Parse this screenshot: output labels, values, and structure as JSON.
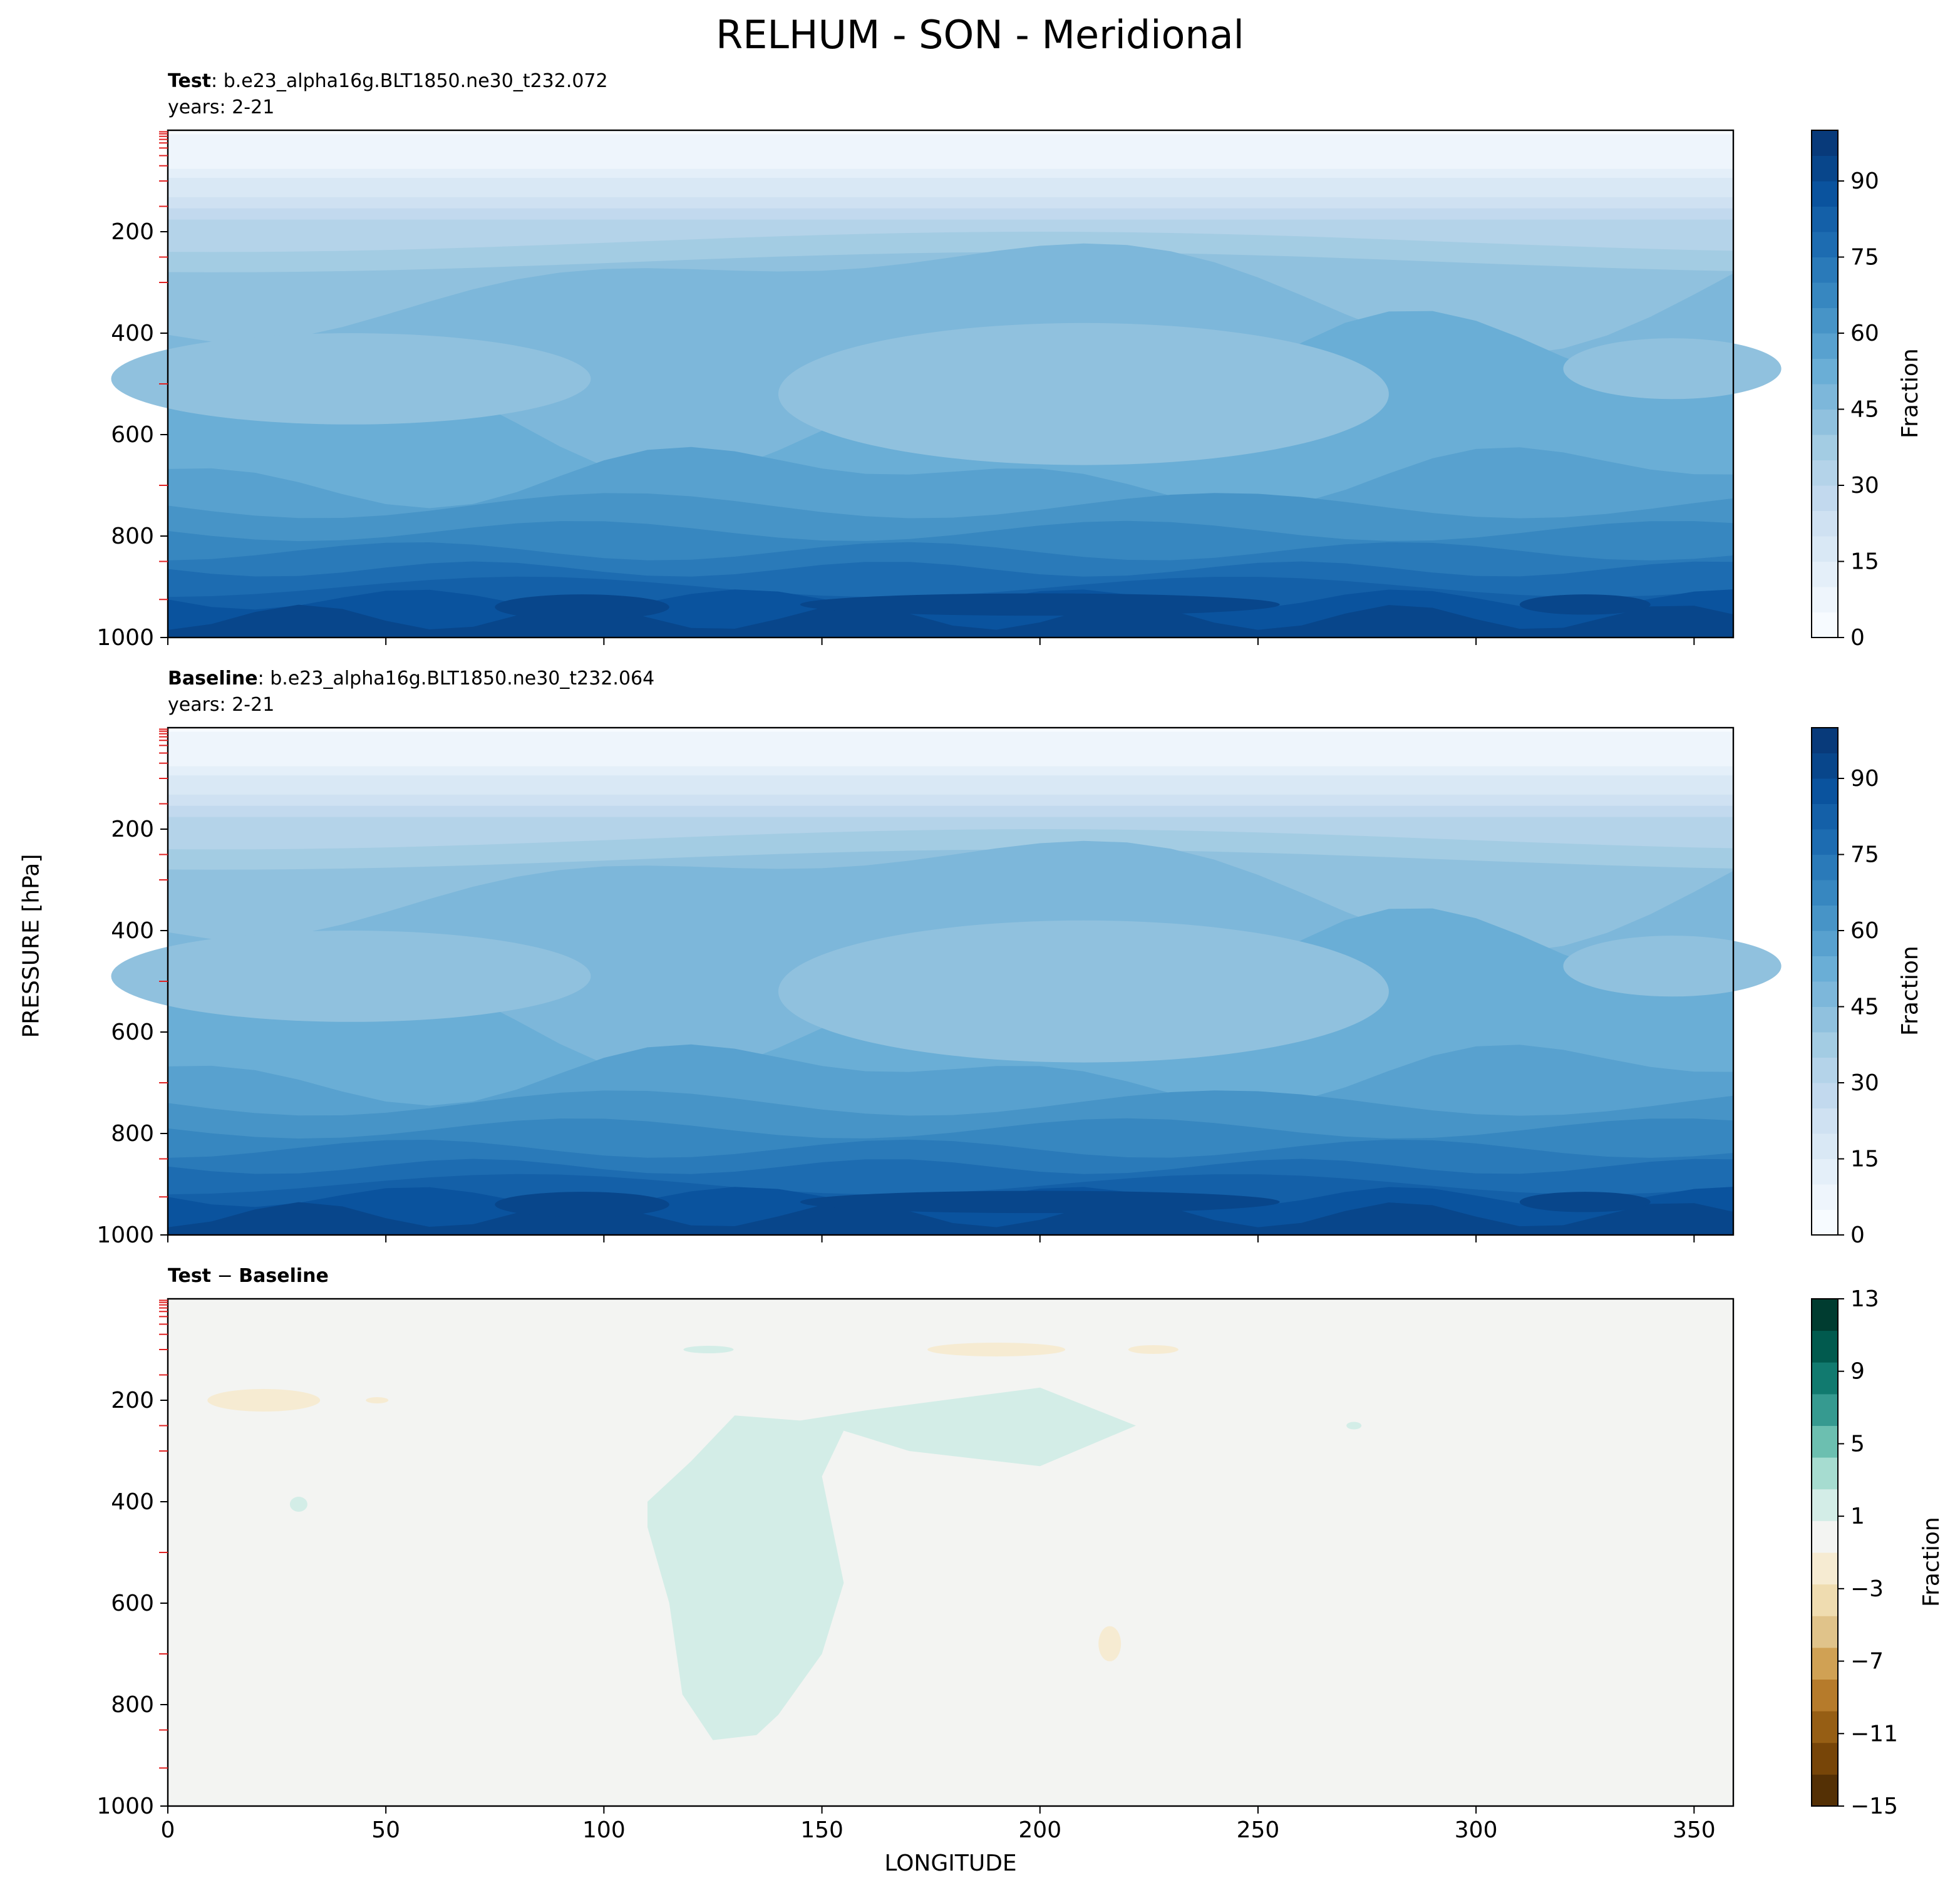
{
  "chart_data": {
    "title": "RELHUM - SON - Meridional",
    "xlabel": "LONGITUDE",
    "ylabel": "PRESSURE [hPa]",
    "type": "heatmap",
    "panels": [
      {
        "key": "test",
        "case_bold": "Test",
        "case_sep": ":",
        "case_name": "b.e23_alpha16g.BLT1850.ne30_t232.072",
        "years": "years: 2-21",
        "xlim": [
          0,
          359
        ],
        "ylim": [
          1000,
          0
        ],
        "yticks": [
          "200",
          "400",
          "600",
          "800",
          "1000"
        ],
        "xticks": [
          "0",
          "50",
          "100",
          "150",
          "200",
          "250",
          "300",
          "350"
        ],
        "show_xticklabels": false,
        "colormap": "Blues",
        "colorbar_label": "Fraction",
        "colorbar_ticks": [
          "0",
          "15",
          "30",
          "45",
          "60",
          "75",
          "90"
        ],
        "colorbar_range": [
          0,
          100
        ]
      },
      {
        "key": "baseline",
        "case_bold": "Baseline",
        "case_sep": ":",
        "case_name": "b.e23_alpha16g.BLT1850.ne30_t232.064",
        "years": "years: 2-21",
        "xlim": [
          0,
          359
        ],
        "ylim": [
          1000,
          0
        ],
        "yticks": [
          "200",
          "400",
          "600",
          "800",
          "1000"
        ],
        "xticks": [
          "0",
          "50",
          "100",
          "150",
          "200",
          "250",
          "300",
          "350"
        ],
        "show_xticklabels": false,
        "colormap": "Blues",
        "colorbar_label": "Fraction",
        "colorbar_ticks": [
          "0",
          "15",
          "30",
          "45",
          "60",
          "75",
          "90"
        ],
        "colorbar_range": [
          0,
          100
        ]
      },
      {
        "key": "diff",
        "case_bold_a": "Test",
        "case_minus": "−",
        "case_bold_b": "Baseline",
        "xlim": [
          0,
          359
        ],
        "ylim": [
          1000,
          0
        ],
        "yticks": [
          "200",
          "400",
          "600",
          "800",
          "1000"
        ],
        "xticks": [
          "0",
          "50",
          "100",
          "150",
          "200",
          "250",
          "300",
          "350"
        ],
        "show_xticklabels": true,
        "colormap": "BrBG",
        "colorbar_label": "Fraction",
        "colorbar_ticks": [
          "13",
          "9",
          "5",
          "1",
          "−3",
          "−7",
          "−11",
          "−15"
        ],
        "colorbar_range": [
          -15,
          13
        ]
      }
    ],
    "blues_levels": [
      "#f7fbff",
      "#eef5fc",
      "#e4eff9",
      "#d9e8f5",
      "#cfe1f2",
      "#c2d9ee",
      "#b4d3e9",
      "#a3cce3",
      "#90c1de",
      "#7db7da",
      "#6aaed6",
      "#58a1cf",
      "#4794c7",
      "#3787c0",
      "#2a7ab9",
      "#1d6cb1",
      "#1460a8",
      "#0a539e",
      "#08468b",
      "#083a7a"
    ],
    "brbg_levels": [
      "#543005",
      "#774508",
      "#965e14",
      "#b67b2b",
      "#d0a154",
      "#e0c38a",
      "#efdcb0",
      "#f6ebd2",
      "#f3f4f2",
      "#d3ede7",
      "#a6dcd0",
      "#6cbfb0",
      "#369a90",
      "#117a6f",
      "#015a4e",
      "#003c30"
    ]
  }
}
